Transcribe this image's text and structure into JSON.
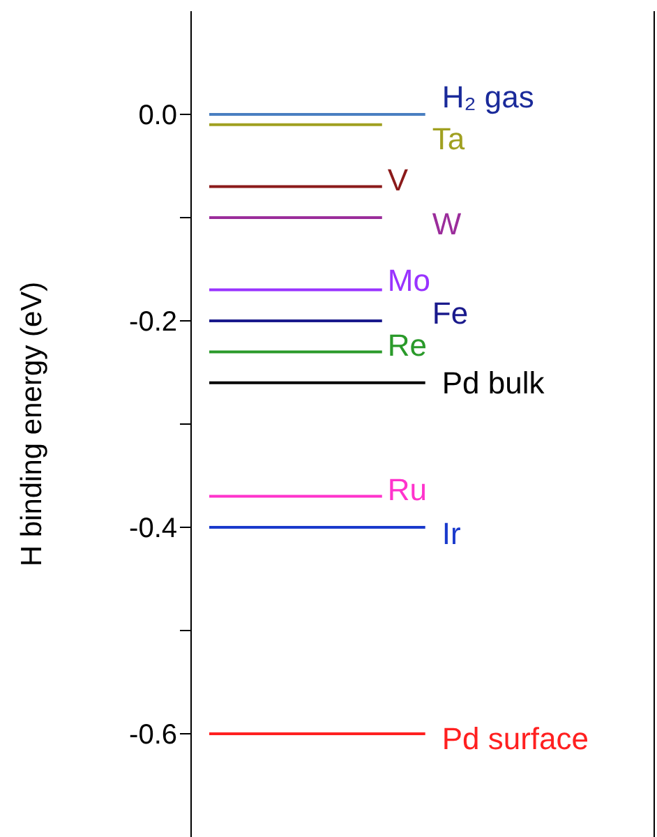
{
  "chart_data": {
    "type": "line",
    "ylabel": "H binding energy (eV)",
    "ylim": [
      -0.7,
      0.1
    ],
    "tick_labels": "y",
    "grid": false,
    "legend": false,
    "marker": "none",
    "line_style": "solid",
    "categories": [
      null,
      null,
      null,
      null,
      null,
      null
    ],
    "yticks": [
      {
        "value": 0,
        "label": "0.0"
      },
      {
        "value": -0.1,
        "label": null
      },
      {
        "value": -0.2,
        "label": "-0.2"
      },
      {
        "value": -0.3,
        "label": null
      },
      {
        "value": -0.4,
        "label": "-0.4"
      },
      {
        "value": -0.5,
        "label": null
      },
      {
        "value": -0.6,
        "label": "-0.6"
      }
    ],
    "series": [
      {
        "name": "H₂ gas",
        "color": "#4a7fc1",
        "values": [
          0,
          0,
          0,
          0,
          0,
          0
        ]
      },
      {
        "name": "Ta",
        "color": "#a0a020",
        "values": [
          -0.01,
          -0.01,
          -0.01,
          -0.01,
          -0.01,
          null
        ]
      },
      {
        "name": "V",
        "color": "#8b1a1a",
        "values": [
          -0.07,
          -0.07,
          -0.07,
          -0.07,
          -0.07,
          null
        ]
      },
      {
        "name": "W",
        "color": "#9b2d9b",
        "values": [
          -0.1,
          -0.1,
          -0.1,
          -0.1,
          -0.1,
          null
        ]
      },
      {
        "name": "Mo",
        "color": "#9933ff",
        "values": [
          -0.17,
          -0.17,
          -0.17,
          -0.17,
          -0.17,
          null
        ]
      },
      {
        "name": "Fe",
        "color": "#1a1a8c",
        "values": [
          -0.2,
          -0.2,
          -0.2,
          -0.2,
          -0.2,
          null
        ]
      },
      {
        "name": "Re",
        "color": "#2a9a2a",
        "values": [
          -0.23,
          -0.23,
          -0.23,
          -0.23,
          -0.23,
          null
        ]
      },
      {
        "name": "Pd bulk",
        "color": "#000000",
        "values": [
          -0.26,
          -0.26,
          -0.26,
          -0.26,
          -0.26,
          -0.26
        ]
      },
      {
        "name": "Ru",
        "color": "#ff33cc",
        "values": [
          -0.37,
          -0.37,
          -0.37,
          -0.37,
          -0.37,
          null
        ]
      },
      {
        "name": "Ir",
        "color": "#1a3acc",
        "values": [
          -0.4,
          -0.4,
          -0.4,
          -0.4,
          -0.4,
          -0.4
        ]
      },
      {
        "name": "Pd surface",
        "color": "#ff2020",
        "values": [
          -0.6,
          -0.6,
          -0.6,
          -0.6,
          -0.6,
          -0.6
        ]
      }
    ]
  }
}
